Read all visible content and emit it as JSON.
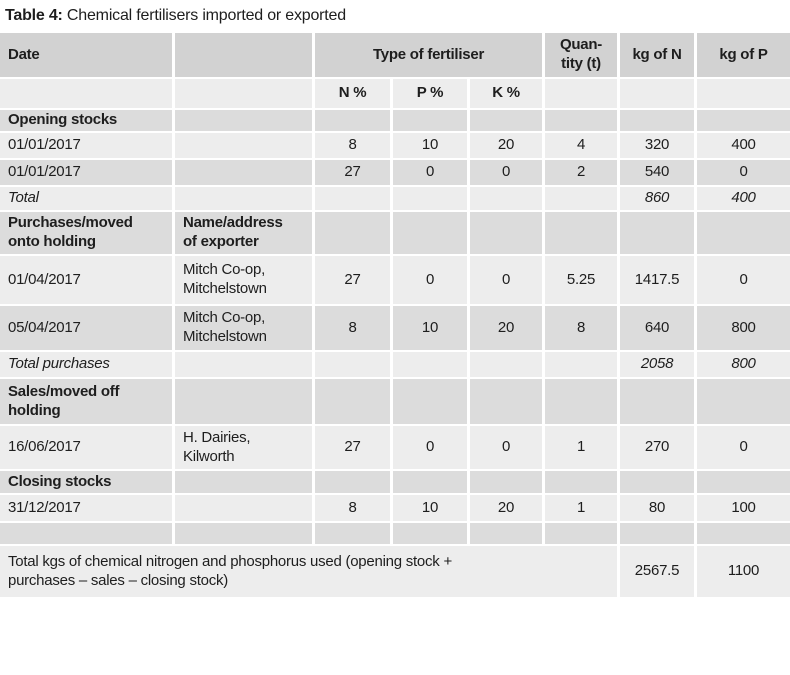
{
  "title": {
    "prefix": "Table 4:",
    "rest": " Chemical fertilisers imported or exported"
  },
  "colors": {
    "header_bg": "#d2d2d2",
    "row_medium_bg": "#dcdcdc",
    "row_light_bg": "#ededed",
    "page_bg": "#ffffff",
    "text": "#1e1e1e"
  },
  "table": {
    "column_headers": [
      "Date",
      "",
      "N %",
      "P %",
      "K %",
      "Quan-tity (t)",
      "kg of N",
      "kg of P"
    ],
    "group_header": "Type of fertiliser",
    "rows": [
      {
        "shade": "dark",
        "cells": [
          {
            "text": "Date",
            "bold": true
          },
          {
            "text": ""
          },
          {
            "text": "Type of fertiliser",
            "span": 3,
            "align": "center",
            "bold": true
          },
          {
            "text": "Quan-\ntity (t)",
            "align": "center",
            "bold": true
          },
          {
            "text": "kg of N",
            "align": "center",
            "bold": true
          },
          {
            "text": "kg of P",
            "align": "center",
            "bold": true
          }
        ]
      },
      {
        "shade": "light",
        "cells": [
          {
            "text": ""
          },
          {
            "text": ""
          },
          {
            "text": "N %",
            "align": "center",
            "bold": true
          },
          {
            "text": "P %",
            "align": "center",
            "bold": true
          },
          {
            "text": "K %",
            "align": "center",
            "bold": true
          },
          {
            "text": ""
          },
          {
            "text": ""
          },
          {
            "text": ""
          }
        ]
      },
      {
        "shade": "mid",
        "cells": [
          {
            "text": "Opening stocks",
            "bold": true
          },
          {
            "text": ""
          },
          {
            "text": ""
          },
          {
            "text": ""
          },
          {
            "text": ""
          },
          {
            "text": ""
          },
          {
            "text": ""
          },
          {
            "text": ""
          }
        ]
      },
      {
        "shade": "light",
        "cells": [
          {
            "text": "01/01/2017"
          },
          {
            "text": ""
          },
          {
            "text": "8",
            "align": "center"
          },
          {
            "text": "10",
            "align": "center"
          },
          {
            "text": "20",
            "align": "center"
          },
          {
            "text": "4",
            "align": "center"
          },
          {
            "text": "320",
            "align": "center"
          },
          {
            "text": "400",
            "align": "center"
          }
        ]
      },
      {
        "shade": "mid",
        "cells": [
          {
            "text": "01/01/2017"
          },
          {
            "text": ""
          },
          {
            "text": "27",
            "align": "center"
          },
          {
            "text": "0",
            "align": "center"
          },
          {
            "text": "0",
            "align": "center"
          },
          {
            "text": "2",
            "align": "center"
          },
          {
            "text": "540",
            "align": "center"
          },
          {
            "text": "0",
            "align": "center"
          }
        ]
      },
      {
        "shade": "light",
        "cells": [
          {
            "text": "Total",
            "italic": true
          },
          {
            "text": ""
          },
          {
            "text": ""
          },
          {
            "text": ""
          },
          {
            "text": ""
          },
          {
            "text": ""
          },
          {
            "text": "860",
            "align": "center",
            "italic": true
          },
          {
            "text": "400",
            "align": "center",
            "italic": true
          }
        ]
      },
      {
        "shade": "mid",
        "cells": [
          {
            "text": "Purchases/moved\nonto holding",
            "bold": true
          },
          {
            "text": "Name/address\nof exporter",
            "bold": true
          },
          {
            "text": ""
          },
          {
            "text": ""
          },
          {
            "text": ""
          },
          {
            "text": ""
          },
          {
            "text": ""
          },
          {
            "text": ""
          }
        ]
      },
      {
        "shade": "light",
        "cells": [
          {
            "text": "01/04/2017"
          },
          {
            "text": "Mitch Co-op,\nMitchelstown"
          },
          {
            "text": "27",
            "align": "center"
          },
          {
            "text": "0",
            "align": "center"
          },
          {
            "text": "0",
            "align": "center"
          },
          {
            "text": "5.25",
            "align": "center"
          },
          {
            "text": "1417.5",
            "align": "center"
          },
          {
            "text": "0",
            "align": "center"
          }
        ]
      },
      {
        "shade": "mid",
        "cells": [
          {
            "text": "05/04/2017"
          },
          {
            "text": "Mitch Co-op,\nMitchelstown"
          },
          {
            "text": "8",
            "align": "center"
          },
          {
            "text": "10",
            "align": "center"
          },
          {
            "text": "20",
            "align": "center"
          },
          {
            "text": "8",
            "align": "center"
          },
          {
            "text": "640",
            "align": "center"
          },
          {
            "text": "800",
            "align": "center"
          }
        ]
      },
      {
        "shade": "light",
        "cells": [
          {
            "text": "Total purchases",
            "italic": true
          },
          {
            "text": ""
          },
          {
            "text": ""
          },
          {
            "text": ""
          },
          {
            "text": ""
          },
          {
            "text": ""
          },
          {
            "text": "2058",
            "align": "center",
            "italic": true
          },
          {
            "text": "800",
            "align": "center",
            "italic": true
          }
        ]
      },
      {
        "shade": "mid",
        "cells": [
          {
            "text": "Sales/moved off\nholding",
            "bold": true
          },
          {
            "text": ""
          },
          {
            "text": ""
          },
          {
            "text": ""
          },
          {
            "text": ""
          },
          {
            "text": ""
          },
          {
            "text": ""
          },
          {
            "text": ""
          }
        ]
      },
      {
        "shade": "light",
        "cells": [
          {
            "text": "16/06/2017"
          },
          {
            "text": "H. Dairies,\nKilworth"
          },
          {
            "text": "27",
            "align": "center"
          },
          {
            "text": "0",
            "align": "center"
          },
          {
            "text": "0",
            "align": "center"
          },
          {
            "text": "1",
            "align": "center"
          },
          {
            "text": "270",
            "align": "center"
          },
          {
            "text": "0",
            "align": "center"
          }
        ]
      },
      {
        "shade": "mid",
        "cells": [
          {
            "text": "Closing stocks",
            "bold": true
          },
          {
            "text": ""
          },
          {
            "text": ""
          },
          {
            "text": ""
          },
          {
            "text": ""
          },
          {
            "text": ""
          },
          {
            "text": ""
          },
          {
            "text": ""
          }
        ]
      },
      {
        "shade": "light",
        "cells": [
          {
            "text": "31/12/2017"
          },
          {
            "text": ""
          },
          {
            "text": "8",
            "align": "center"
          },
          {
            "text": "10",
            "align": "center"
          },
          {
            "text": "20",
            "align": "center"
          },
          {
            "text": "1",
            "align": "center"
          },
          {
            "text": "80",
            "align": "center"
          },
          {
            "text": "100",
            "align": "center"
          }
        ]
      },
      {
        "shade": "mid",
        "cells": [
          {
            "text": ""
          },
          {
            "text": ""
          },
          {
            "text": ""
          },
          {
            "text": ""
          },
          {
            "text": ""
          },
          {
            "text": ""
          },
          {
            "text": ""
          },
          {
            "text": ""
          }
        ]
      },
      {
        "shade": "light",
        "cells": [
          {
            "text": "Total kgs of chemical nitrogen and phosphorus used (opening stock +\npurchases – sales – closing stock)",
            "span": 6
          },
          {
            "text": "2567.5",
            "align": "center"
          },
          {
            "text": "1100",
            "align": "center"
          }
        ]
      }
    ]
  }
}
